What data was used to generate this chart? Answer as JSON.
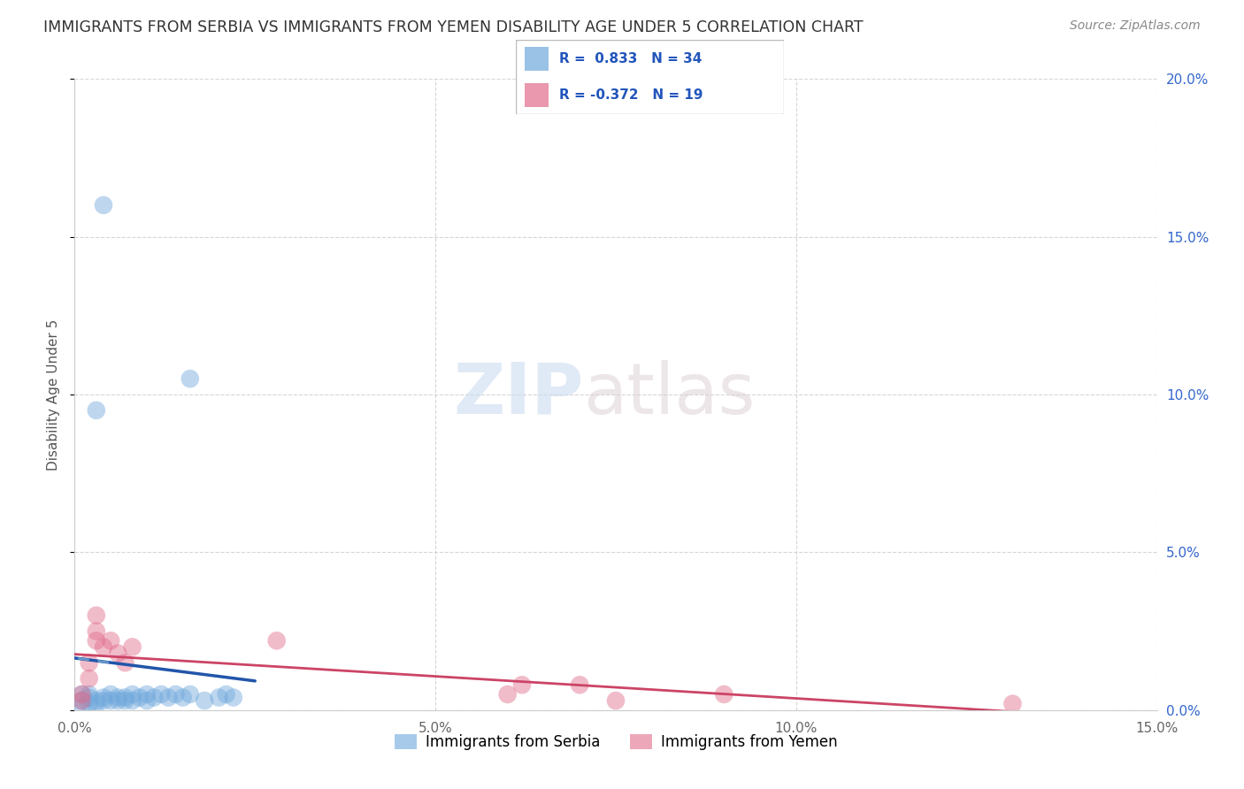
{
  "title": "IMMIGRANTS FROM SERBIA VS IMMIGRANTS FROM YEMEN DISABILITY AGE UNDER 5 CORRELATION CHART",
  "source": "Source: ZipAtlas.com",
  "ylabel": "Disability Age Under 5",
  "xlim": [
    0.0,
    0.15
  ],
  "ylim": [
    0.0,
    0.2
  ],
  "xticks": [
    0.0,
    0.05,
    0.1,
    0.15
  ],
  "yticks": [
    0.0,
    0.05,
    0.1,
    0.15,
    0.2
  ],
  "xticklabels": [
    "0.0%",
    "5.0%",
    "10.0%",
    "15.0%"
  ],
  "yticklabels": [
    "0.0%",
    "5.0%",
    "10.0%",
    "15.0%",
    "20.0%"
  ],
  "serbia_color": "#6fa8dc",
  "yemen_color": "#e06c8a",
  "serbia_R": 0.833,
  "serbia_N": 34,
  "yemen_R": -0.372,
  "yemen_N": 19,
  "serbia_x": [
    0.001,
    0.001,
    0.001,
    0.002,
    0.002,
    0.003,
    0.003,
    0.004,
    0.004,
    0.005,
    0.005,
    0.006,
    0.006,
    0.007,
    0.007,
    0.008,
    0.008,
    0.009,
    0.01,
    0.01,
    0.011,
    0.012,
    0.013,
    0.014,
    0.015,
    0.016,
    0.018,
    0.02,
    0.021,
    0.022,
    0.003,
    0.016,
    0.004,
    0.002
  ],
  "serbia_y": [
    0.001,
    0.003,
    0.005,
    0.002,
    0.004,
    0.002,
    0.003,
    0.003,
    0.004,
    0.003,
    0.005,
    0.003,
    0.004,
    0.004,
    0.003,
    0.003,
    0.005,
    0.004,
    0.003,
    0.005,
    0.004,
    0.005,
    0.004,
    0.005,
    0.004,
    0.005,
    0.003,
    0.004,
    0.005,
    0.004,
    0.095,
    0.105,
    0.16,
    0.005
  ],
  "yemen_x": [
    0.001,
    0.002,
    0.003,
    0.004,
    0.005,
    0.006,
    0.007,
    0.008,
    0.06,
    0.062,
    0.07,
    0.075,
    0.09,
    0.13,
    0.003,
    0.003,
    0.002,
    0.028,
    0.001
  ],
  "yemen_y": [
    0.005,
    0.01,
    0.025,
    0.02,
    0.022,
    0.018,
    0.015,
    0.02,
    0.005,
    0.008,
    0.008,
    0.003,
    0.005,
    0.002,
    0.022,
    0.03,
    0.015,
    0.022,
    0.003
  ],
  "watermark_zip": "ZIP",
  "watermark_atlas": "atlas",
  "legend_serbia": "Immigrants from Serbia",
  "legend_yemen": "Immigrants from Yemen"
}
